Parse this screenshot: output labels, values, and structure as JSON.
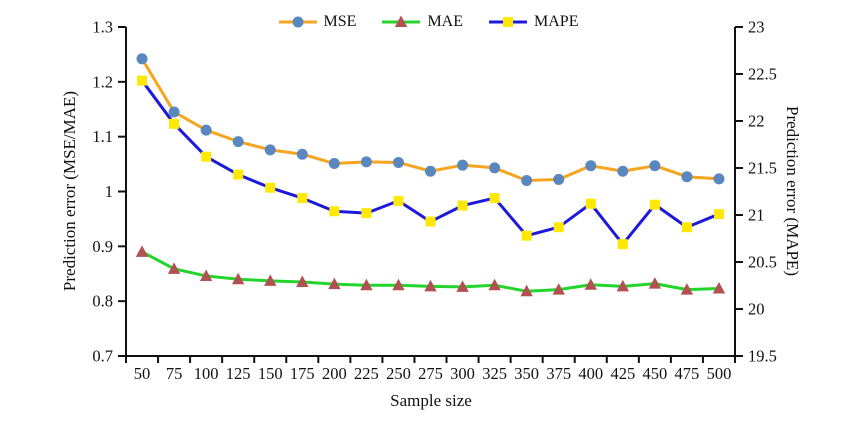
{
  "chart_data": {
    "type": "line",
    "xlabel": "Sample size",
    "ylabel_left": "Prediction error (MSE/MAE)",
    "ylabel_right": "Prediction error (MAPE)",
    "legend_position": "top-center",
    "grid": false,
    "axis_color": "#111111",
    "categories": [
      50,
      75,
      100,
      125,
      150,
      175,
      200,
      225,
      250,
      275,
      300,
      325,
      350,
      375,
      400,
      425,
      450,
      475,
      500
    ],
    "left_axis": {
      "min": 0.7,
      "max": 1.3,
      "ticks": [
        0.7,
        0.8,
        0.9,
        1,
        1.1,
        1.2,
        1.3
      ],
      "tick_labels": [
        "0.7",
        "0.8",
        "0.9",
        "1",
        "1.1",
        "1.2",
        "1.3"
      ]
    },
    "right_axis": {
      "min": 19.5,
      "max": 23,
      "ticks": [
        19.5,
        20,
        20.5,
        21,
        21.5,
        22,
        22.5,
        23
      ],
      "tick_labels": [
        "19.5",
        "20",
        "20.5",
        "21",
        "21.5",
        "22",
        "22.5",
        "23"
      ]
    },
    "series": [
      {
        "name": "MSE",
        "axis": "left",
        "line_color": "#F7A41F",
        "marker": "circle",
        "marker_color": "#5B87BF",
        "values": [
          1.242,
          1.145,
          1.112,
          1.091,
          1.076,
          1.068,
          1.051,
          1.054,
          1.053,
          1.037,
          1.048,
          1.043,
          1.02,
          1.022,
          1.047,
          1.037,
          1.047,
          1.027,
          1.023
        ]
      },
      {
        "name": "MAE",
        "axis": "left",
        "line_color": "#24D42C",
        "marker": "triangle",
        "marker_color": "#B25151",
        "values": [
          0.89,
          0.859,
          0.846,
          0.84,
          0.837,
          0.835,
          0.831,
          0.829,
          0.829,
          0.827,
          0.826,
          0.829,
          0.818,
          0.821,
          0.83,
          0.827,
          0.832,
          0.821,
          0.823
        ]
      },
      {
        "name": "MAPE",
        "axis": "right",
        "line_color": "#1C19DC",
        "marker": "square",
        "marker_color": "#FFE903",
        "values": [
          22.43,
          21.97,
          21.62,
          21.43,
          21.29,
          21.18,
          21.04,
          21.02,
          21.15,
          20.93,
          21.1,
          21.18,
          20.78,
          20.87,
          21.12,
          20.69,
          21.11,
          20.87,
          21.01
        ]
      }
    ]
  }
}
